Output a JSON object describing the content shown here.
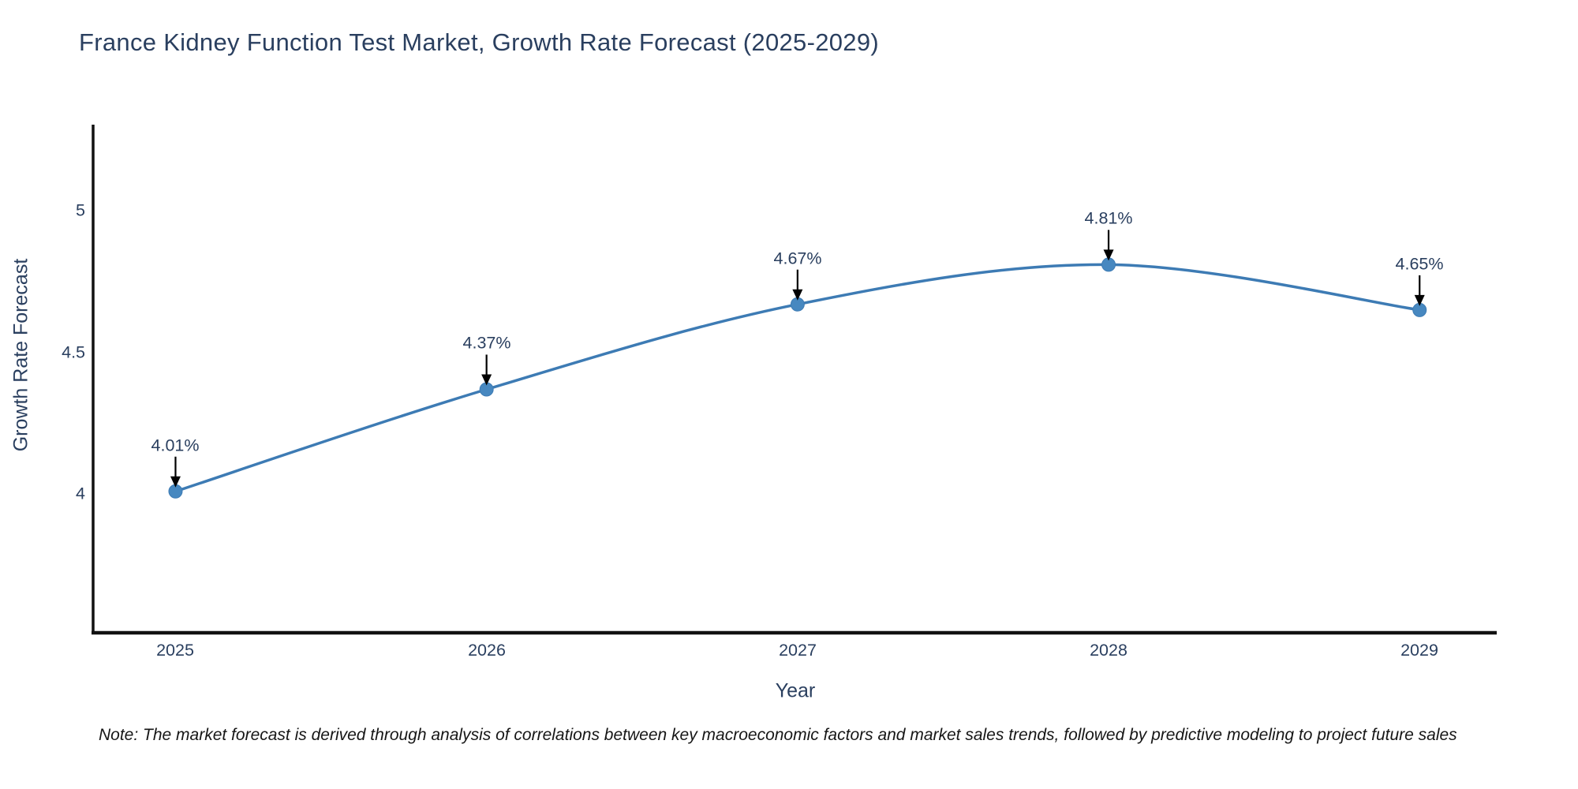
{
  "chart_data": {
    "type": "line",
    "title": "France Kidney Function Test Market, Growth Rate Forecast (2025-2029)",
    "xlabel": "Year",
    "ylabel": "Growth Rate Forecast",
    "x": [
      2025,
      2026,
      2027,
      2028,
      2029
    ],
    "values": [
      4.01,
      4.37,
      4.67,
      4.81,
      4.65
    ],
    "series": [
      {
        "name": "Growth Rate Forecast",
        "values": [
          4.01,
          4.37,
          4.67,
          4.81,
          4.65
        ]
      }
    ],
    "point_labels": [
      "4.01%",
      "4.37%",
      "4.67%",
      "4.81%",
      "4.65%"
    ],
    "xtick_labels": [
      "2025",
      "2026",
      "2027",
      "2028",
      "2029"
    ],
    "ytick_values": [
      4,
      4.5,
      5
    ],
    "ytick_labels": [
      "4",
      "4.5",
      "5"
    ],
    "xlim": [
      2024.735,
      2029.248
    ],
    "ylim": [
      3.511,
      5.304
    ],
    "grid": false,
    "legend": "none",
    "line_style": "spline",
    "line_color": "#3d7bb4",
    "marker_color": "#4788c0",
    "arrow_color": "#000000",
    "axis_color": "#111111",
    "text_color": "#2a3f5f"
  },
  "footnote": {
    "text": "Note: The market forecast is derived through analysis of correlations between key macroeconomic factors and market sales trends, followed by predictive modeling to project future sales"
  }
}
